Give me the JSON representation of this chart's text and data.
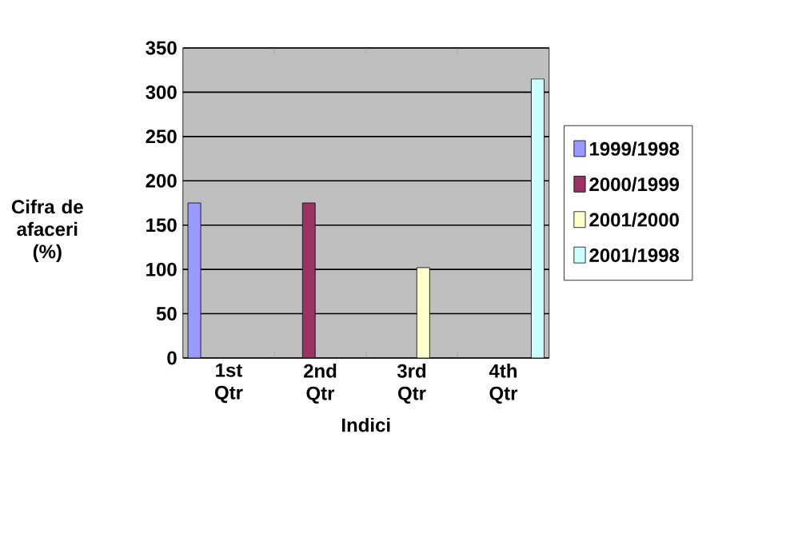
{
  "chart_data": {
    "type": "bar",
    "xlabel": "Indici",
    "ylabel": "Cifra de afaceri (%)",
    "categories": [
      "1st Qtr",
      "2nd Qtr",
      "3rd Qtr",
      "4th Qtr"
    ],
    "series": [
      {
        "name": "1999/1998",
        "color": "#9999ff",
        "values": [
          175,
          null,
          null,
          null
        ]
      },
      {
        "name": "2000/1999",
        "color": "#993366",
        "values": [
          null,
          175,
          null,
          null
        ]
      },
      {
        "name": "2001/2000",
        "color": "#ffffcc",
        "values": [
          null,
          null,
          102,
          null
        ]
      },
      {
        "name": "2001/1998",
        "color": "#ccffff",
        "values": [
          null,
          null,
          null,
          315
        ]
      }
    ],
    "ylim": [
      0,
      350
    ],
    "yticks": [
      0,
      50,
      100,
      150,
      200,
      250,
      300,
      350
    ],
    "grid": "y",
    "legend": "right"
  }
}
